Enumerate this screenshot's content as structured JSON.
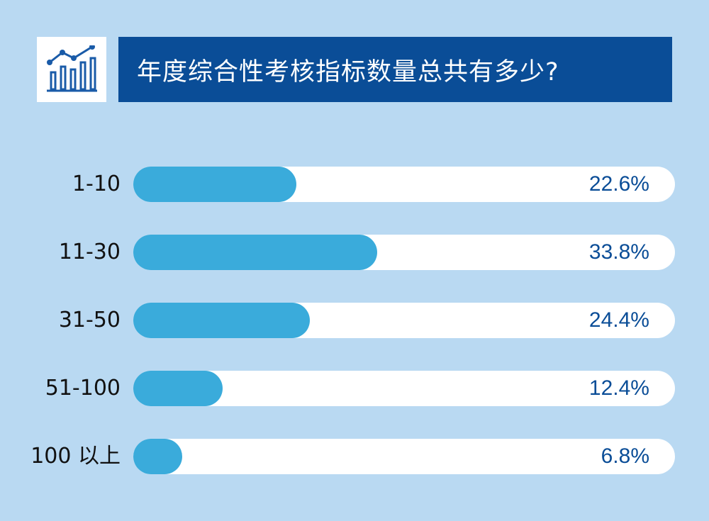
{
  "header": {
    "title": "年度综合性考核指标数量总共有多少?",
    "icon": "bar-chart-trend-icon"
  },
  "colors": {
    "background": "#b9d9f2",
    "banner": "#0a4d97",
    "bar_fill": "#3aabdb",
    "bar_track": "#ffffff",
    "value_text": "#0a4d97"
  },
  "chart_data": {
    "type": "bar",
    "orientation": "horizontal",
    "title": "年度综合性考核指标数量总共有多少?",
    "categories": [
      "1-10",
      "11-30",
      "31-50",
      "51-100",
      "100 以上"
    ],
    "values": [
      22.6,
      33.8,
      24.4,
      12.4,
      6.8
    ],
    "value_labels": [
      "22.6%",
      "33.8%",
      "24.4%",
      "12.4%",
      "6.8%"
    ],
    "unit": "%",
    "xlim": [
      0,
      75
    ],
    "grid": false,
    "legend": "none"
  }
}
